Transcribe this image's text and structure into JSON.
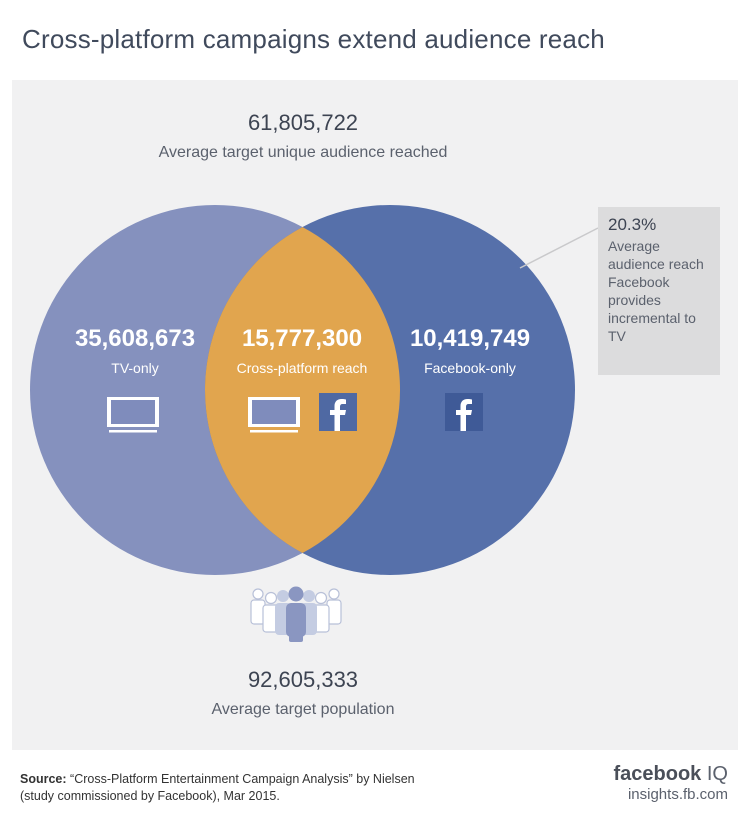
{
  "title": "Cross-platform campaigns extend audience reach",
  "top": {
    "value": "61,805,722",
    "label": "Average target unique audience reached"
  },
  "tv_only": {
    "value": "35,608,673",
    "label": "TV-only"
  },
  "cross": {
    "value": "15,777,300",
    "label": "Cross-platform reach"
  },
  "fb_only": {
    "value": "10,419,749",
    "label": "Facebook-only"
  },
  "callout": {
    "pct": "20.3%",
    "desc": "Average audience reach Facebook provides incremental to TV"
  },
  "bottom": {
    "value": "92,605,333",
    "label": "Average target population"
  },
  "source": {
    "prefix": "Source:",
    "text": "“Cross-Platform Entertainment Campaign Analysis” by Nielsen",
    "text2": "(study commissioned by Facebook), Mar 2015."
  },
  "brand": {
    "logo": "facebook",
    "logo_suffix": "IQ",
    "url": "insights.fb.com"
  },
  "colors": {
    "tv": "#8591be",
    "fb": "#5670aa",
    "overlap": "#e1a54e",
    "panel": "#f1f1f2"
  },
  "icons": {
    "tv": "tv-icon",
    "fb": "facebook-icon",
    "people": "people-icon"
  }
}
